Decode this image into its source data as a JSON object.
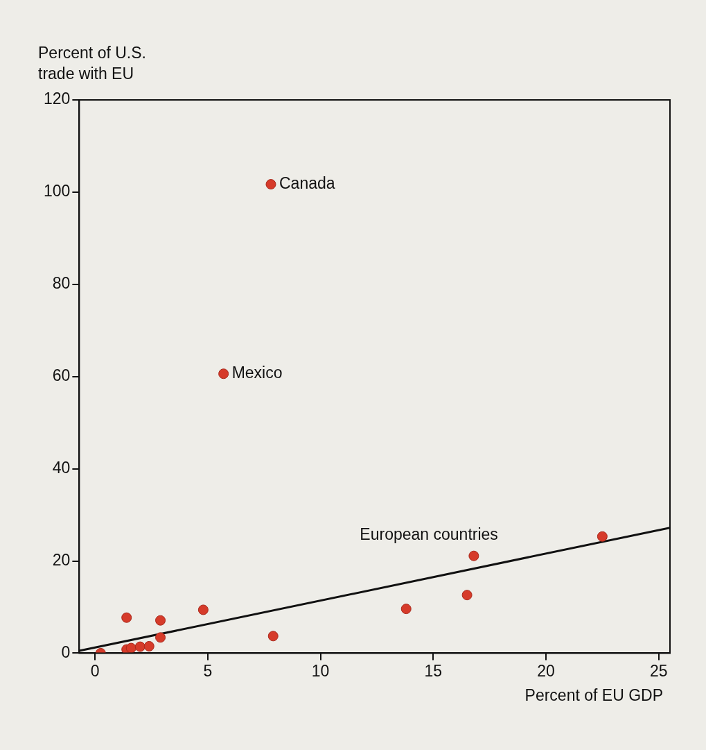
{
  "chart_data": {
    "type": "scatter",
    "xlabel": "Percent of EU GDP",
    "ylabel": "Percent of U.S.\ntrade with EU",
    "xlim": [
      -0.7,
      25.5
    ],
    "ylim": [
      0,
      120
    ],
    "xticks": [
      0,
      5,
      10,
      15,
      20,
      25
    ],
    "yticks": [
      0,
      20,
      40,
      60,
      80,
      100,
      120
    ],
    "grid": false,
    "legend": false,
    "marker": "circle",
    "series": [
      {
        "color": "#d63b2a",
        "x": [
          0.25,
          1.4,
          1.4,
          1.6,
          2.0,
          2.4,
          2.9,
          2.9,
          4.8,
          5.7,
          7.8,
          7.9,
          13.8,
          16.5,
          16.8,
          22.5
        ],
        "values": [
          0,
          7.7,
          0.8,
          1.1,
          1.4,
          1.5,
          7.1,
          3.4,
          9.4,
          60.6,
          101.7,
          3.7,
          9.6,
          12.6,
          21.1,
          25.3
        ]
      },
      {
        "type": "line",
        "color": "#111111",
        "x": [
          -0.7,
          25.5
        ],
        "values": [
          0.5,
          27.2
        ],
        "marker": "none",
        "line_style": "solid"
      }
    ],
    "annotations": [
      {
        "text": "Canada",
        "x": 7.8,
        "y": 101.7
      },
      {
        "text": "Mexico",
        "x": 5.7,
        "y": 60.6
      },
      "European countries"
    ]
  }
}
